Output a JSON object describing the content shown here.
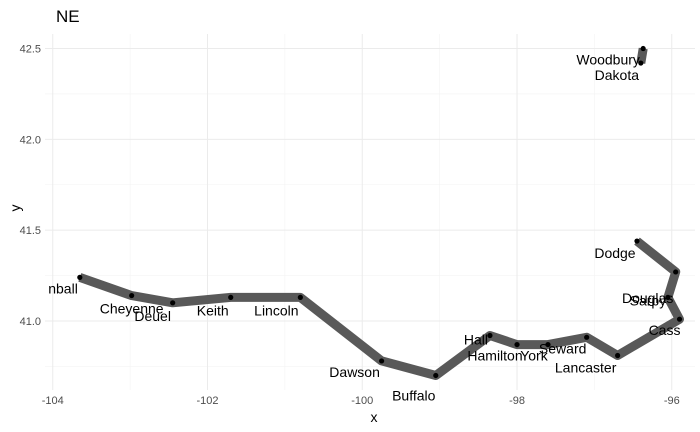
{
  "chart_data": {
    "type": "line",
    "title": "NE",
    "xlabel": "x",
    "ylabel": "y",
    "xlim": [
      -104.1,
      -95.7
    ],
    "ylim": [
      40.62,
      42.58
    ],
    "xticks": [
      -104,
      -102,
      -100,
      -98,
      -96
    ],
    "yticks": [
      41.0,
      41.5,
      42.0,
      42.5
    ],
    "xtick_labels": [
      "-104",
      "-102",
      "-100",
      "-98",
      "-96"
    ],
    "ytick_labels": [
      "41.0",
      "41.5",
      "42.0",
      "42.5"
    ],
    "grid": true,
    "path_color": "#595959",
    "point_color": "#000000",
    "points": [
      {
        "name": "Kimball",
        "label": "nball",
        "x": -103.65,
        "y": 41.24
      },
      {
        "name": "Cheyenne",
        "label": "Cheyenne",
        "x": -102.98,
        "y": 41.14
      },
      {
        "name": "Deuel",
        "label": "Deuel",
        "x": -102.45,
        "y": 41.1
      },
      {
        "name": "Keith",
        "label": "Keith",
        "x": -101.7,
        "y": 41.13
      },
      {
        "name": "Lincoln",
        "label": "Lincoln",
        "x": -100.8,
        "y": 41.13
      },
      {
        "name": "Dawson",
        "label": "Dawson",
        "x": -99.75,
        "y": 40.78
      },
      {
        "name": "Buffalo",
        "label": "Buffalo",
        "x": -99.05,
        "y": 40.7
      },
      {
        "name": "Hall",
        "label": "Hall",
        "x": -98.35,
        "y": 40.92
      },
      {
        "name": "Hamilton",
        "label": "Hamilton",
        "x": -98.0,
        "y": 40.87
      },
      {
        "name": "York",
        "label": "York",
        "x": -97.6,
        "y": 40.87
      },
      {
        "name": "Seward",
        "label": "Seward",
        "x": -97.1,
        "y": 40.91
      },
      {
        "name": "Lancaster",
        "label": "Lancaster",
        "x": -96.7,
        "y": 40.81
      },
      {
        "name": "Cass",
        "label": "Cass",
        "x": -95.9,
        "y": 41.01
      },
      {
        "name": "Sarpy",
        "label": "Sarpy",
        "x": -96.05,
        "y": 41.13
      },
      {
        "name": "Douglas",
        "label": "Douglas",
        "x": -95.95,
        "y": 41.27
      },
      {
        "name": "Dodge",
        "label": "Dodge",
        "x": -96.45,
        "y": 41.44
      },
      {
        "name": "Dakota",
        "label": "Dakota",
        "x": -96.4,
        "y": 42.42
      },
      {
        "name": "Woodbury",
        "label": "Woodbury",
        "x": -96.37,
        "y": 42.5
      }
    ],
    "path_segments": [
      [
        "Kimball",
        "Cheyenne",
        "Deuel",
        "Keith",
        "Lincoln",
        "Dawson",
        "Buffalo",
        "Hall",
        "Hamilton",
        "York",
        "Seward",
        "Lancaster",
        "Cass",
        "Sarpy",
        "Douglas",
        "Dodge"
      ],
      [
        "Dakota",
        "Woodbury"
      ]
    ]
  }
}
